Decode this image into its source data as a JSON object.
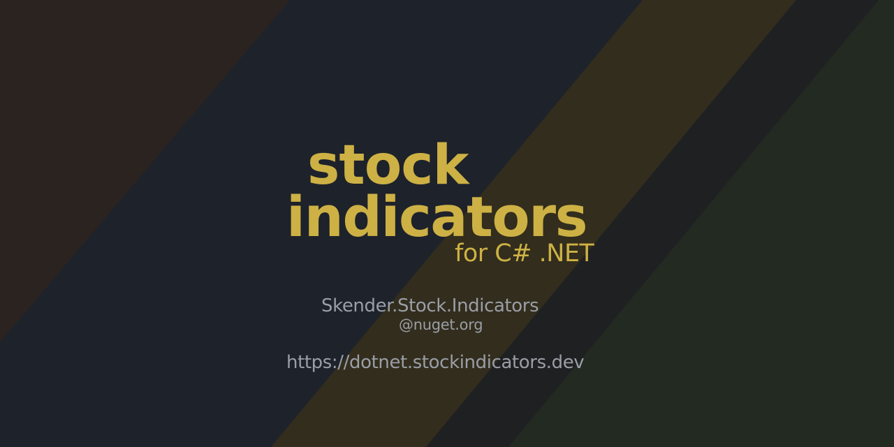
{
  "logo": {
    "line1": "stock",
    "line2": "indicators",
    "tagline": "for C# .NET"
  },
  "package": {
    "name": "Skender.Stock.Indicators",
    "host": "@nuget.org"
  },
  "site": {
    "url": "https://dotnet.stockindicators.dev"
  },
  "colors": {
    "background": "#1e222b",
    "stripe_brown": "#2b231f",
    "stripe_olive": "#322d1d",
    "stripe_dark": "#1f2022",
    "stripe_green": "#232a22",
    "logo_gold": "#cdb144",
    "info_gray": "#9a9ea6"
  }
}
